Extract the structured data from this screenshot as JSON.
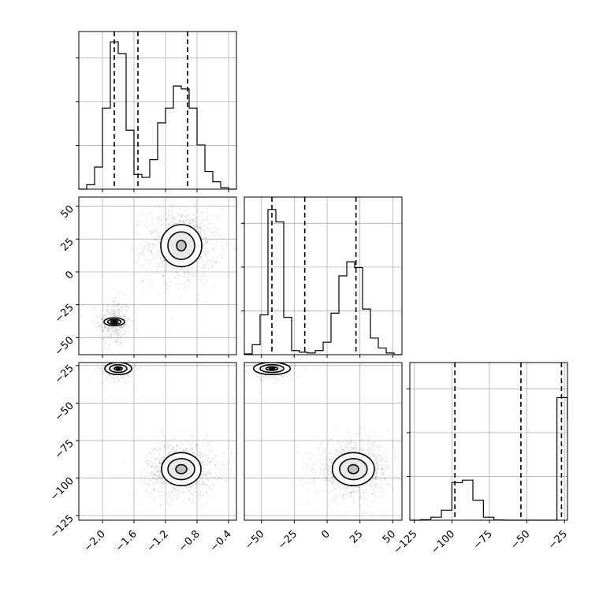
{
  "chart_data": {
    "type": "corner",
    "grid": true,
    "parameters": [
      {
        "id": "p0",
        "range": [
          -2.3,
          -0.3
        ],
        "ticks": [
          -2.0,
          -1.6,
          -1.2,
          -0.8,
          -0.4
        ],
        "tick_labels": [
          "−2.0",
          "−1.6",
          "−1.2",
          "−0.8",
          "−0.4"
        ],
        "quantiles": [
          -1.85,
          -1.55,
          -0.92
        ],
        "histogram": {
          "edges": [
            -2.3,
            -2.2,
            -2.1,
            -2.0,
            -1.9,
            -1.8,
            -1.7,
            -1.6,
            -1.5,
            -1.4,
            -1.3,
            -1.2,
            -1.1,
            -1.0,
            -0.9,
            -0.8,
            -0.7,
            -0.6,
            -0.5,
            -0.4,
            -0.3
          ],
          "counts": [
            0,
            3,
            15,
            55,
            100,
            92,
            40,
            10,
            8,
            20,
            45,
            55,
            70,
            68,
            55,
            30,
            12,
            5,
            1,
            0
          ],
          "ymax": 107
        }
      },
      {
        "id": "p1",
        "range": [
          -63,
          57
        ],
        "ticks": [
          -50,
          -25,
          0,
          25,
          50
        ],
        "tick_labels": [
          "−50",
          "−25",
          "0",
          "25",
          "50"
        ],
        "quantiles": [
          -42,
          -17,
          22
        ],
        "histogram": {
          "edges": [
            -63,
            -57,
            -51,
            -45,
            -39,
            -33,
            -27,
            -21,
            -15,
            -9,
            -3,
            3,
            9,
            15,
            21,
            27,
            33,
            39,
            45,
            51,
            57
          ],
          "counts": [
            1,
            12,
            48,
            175,
            160,
            45,
            5,
            3,
            2,
            5,
            15,
            50,
            95,
            112,
            105,
            55,
            20,
            8,
            2,
            0
          ],
          "ymax": 190
        }
      },
      {
        "id": "p2",
        "range": [
          -128,
          -23
        ],
        "ticks": [
          -125,
          -100,
          -75,
          -50,
          -25
        ],
        "tick_labels": [
          "−125",
          "−100",
          "−75",
          "−50",
          "−25"
        ],
        "quantiles": [
          -98,
          -54,
          -27
        ],
        "histogram": {
          "edges": [
            -128,
            -121,
            -114,
            -107,
            -100,
            -93,
            -86,
            -79,
            -72,
            -65,
            -58,
            -51,
            -44,
            -37,
            -30,
            -23
          ],
          "counts": [
            0,
            2,
            12,
            40,
            150,
            160,
            80,
            12,
            1,
            0,
            0,
            0,
            0,
            0,
            490,
            400
          ],
          "ymax": 630
        }
      }
    ],
    "clusters_2d": [
      {
        "xi": 0,
        "yi": 1,
        "mean": [
          -1.85,
          -38
        ],
        "sd": [
          0.08,
          7
        ],
        "n": 350,
        "levels": [
          [
            0.13,
            3.0
          ],
          [
            0.085,
            1.9
          ],
          [
            0.045,
            1.0
          ],
          [
            0.02,
            1.8
          ]
        ]
      },
      {
        "xi": 0,
        "yi": 1,
        "mean": [
          -1.0,
          20
        ],
        "sd": [
          0.18,
          11
        ],
        "n": 900,
        "levels": [
          [
            0.26,
            16
          ],
          [
            0.17,
            10.5
          ],
          [
            0.06,
            4
          ]
        ]
      },
      {
        "xi": 0,
        "yi": 2,
        "mean": [
          -1.8,
          -27
        ],
        "sd": [
          0.09,
          3
        ],
        "n": 250,
        "levels": [
          [
            0.17,
            4
          ],
          [
            0.11,
            2.6
          ],
          [
            0.05,
            1.2
          ],
          [
            0.025,
            1.0
          ]
        ]
      },
      {
        "xi": 0,
        "yi": 2,
        "mean": [
          -1.0,
          -94
        ],
        "sd": [
          0.17,
          7
        ],
        "n": 900,
        "levels": [
          [
            0.25,
            11
          ],
          [
            0.17,
            7
          ],
          [
            0.07,
            3
          ]
        ]
      },
      {
        "xi": 1,
        "yi": 2,
        "mean": [
          -42,
          -27
        ],
        "sd": [
          6,
          3
        ],
        "n": 250,
        "levels": [
          [
            14,
            4
          ],
          [
            9,
            2.6
          ],
          [
            4.5,
            1.2
          ],
          [
            2,
            1.0
          ]
        ]
      },
      {
        "xi": 1,
        "yi": 2,
        "mean": [
          20,
          -94
        ],
        "sd": [
          11,
          7
        ],
        "n": 900,
        "levels": [
          [
            16,
            11
          ],
          [
            10.5,
            7
          ],
          [
            4,
            3
          ]
        ]
      }
    ]
  }
}
